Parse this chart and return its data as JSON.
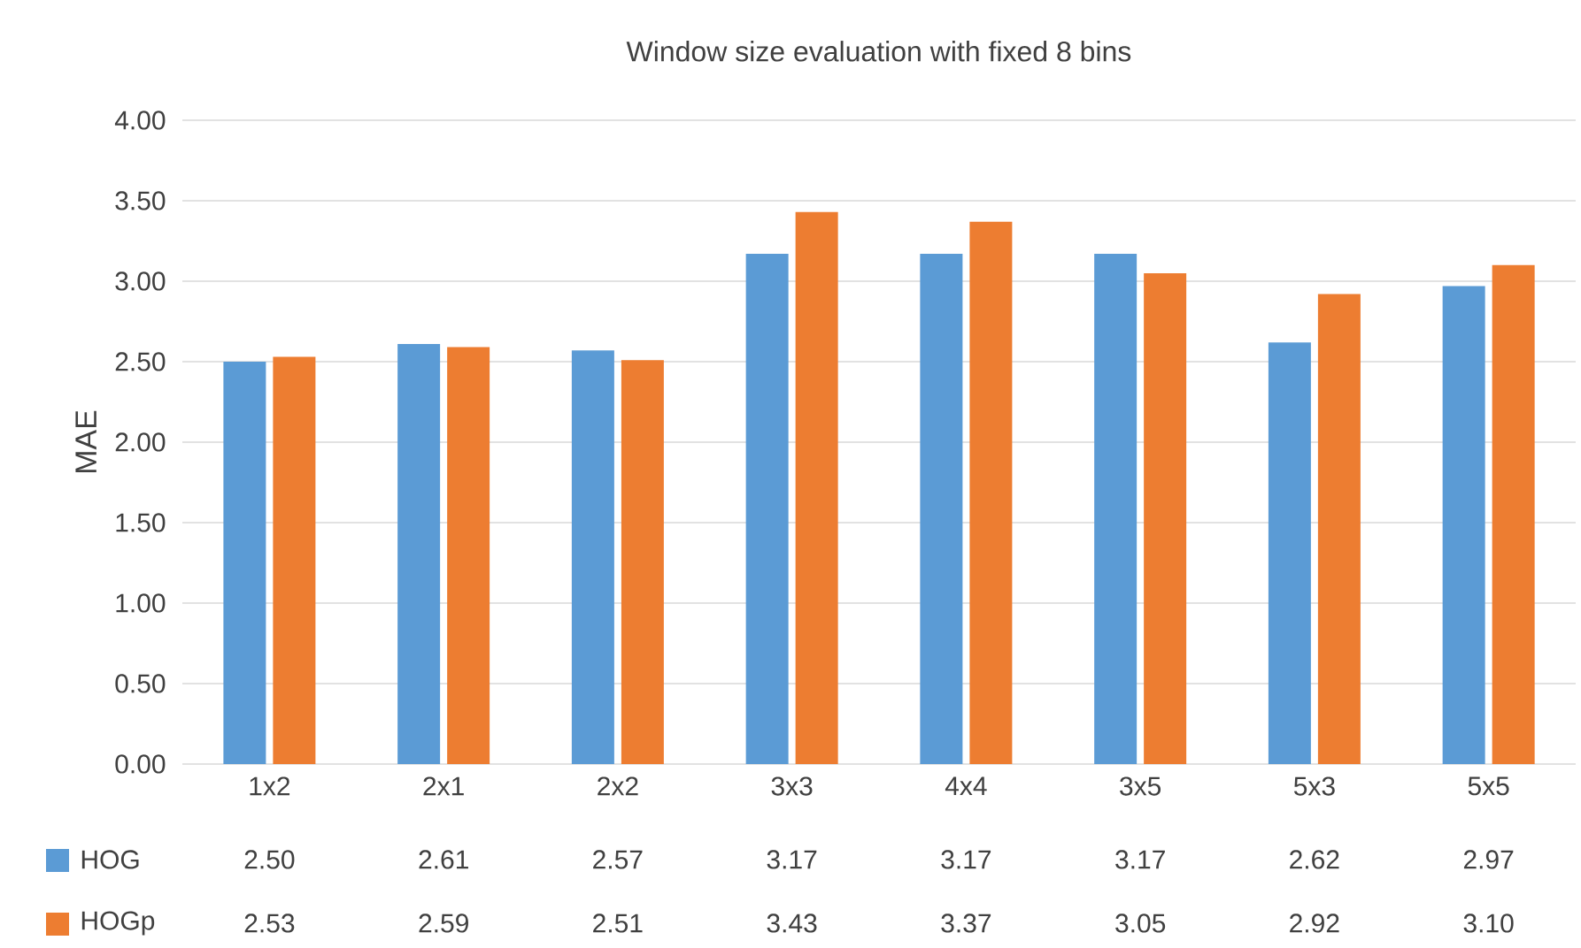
{
  "chart_data": {
    "type": "bar",
    "title": "Window size evaluation with fixed 8 bins",
    "ylabel": "MAE",
    "categories": [
      "1x2",
      "2x1",
      "2x2",
      "3x3",
      "4x4",
      "3x5",
      "5x3",
      "5x5"
    ],
    "series": [
      {
        "name": "HOG",
        "color": "#5b9bd5",
        "values": [
          2.5,
          2.61,
          2.57,
          3.17,
          3.17,
          3.17,
          2.62,
          2.97
        ],
        "value_labels": [
          "2.50",
          "2.61",
          "2.57",
          "3.17",
          "3.17",
          "3.17",
          "2.62",
          "2.97"
        ]
      },
      {
        "name": "HOGp",
        "color": "#ed7d31",
        "values": [
          2.53,
          2.59,
          2.51,
          3.43,
          3.37,
          3.05,
          2.92,
          3.1
        ],
        "value_labels": [
          "2.53",
          "2.59",
          "2.51",
          "3.43",
          "3.37",
          "3.05",
          "2.92",
          "3.10"
        ]
      }
    ],
    "ylim": [
      0,
      4
    ],
    "yticks": [
      {
        "value": 0,
        "label": "0.00"
      },
      {
        "value": 0.5,
        "label": "0.50"
      },
      {
        "value": 1,
        "label": "1.00"
      },
      {
        "value": 1.5,
        "label": "1.50"
      },
      {
        "value": 2,
        "label": "2.00"
      },
      {
        "value": 2.5,
        "label": "2.50"
      },
      {
        "value": 3,
        "label": "3.00"
      },
      {
        "value": 3.5,
        "label": "3.50"
      },
      {
        "value": 4,
        "label": "4.00"
      }
    ],
    "grid": "y",
    "legend": "bottom"
  }
}
